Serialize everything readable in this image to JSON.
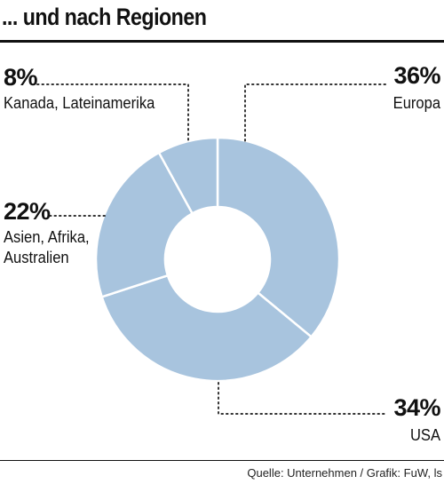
{
  "title": "... und nach Regionen",
  "source": "Quelle: Unternehmen / Grafik: FuW, ls",
  "colors": {
    "slice": "#a8c4de",
    "separator": "#ffffff",
    "leader": "#333333"
  },
  "chart_data": {
    "type": "pie",
    "variant": "donut",
    "slices": [
      {
        "label": "Europa",
        "value": 36,
        "value_label": "36%"
      },
      {
        "label": "USA",
        "value": 34,
        "value_label": "34%"
      },
      {
        "label": "Asien, Afrika, Australien",
        "label_lines": [
          "Asien, Afrika,",
          "Australien"
        ],
        "value": 22,
        "value_label": "22%"
      },
      {
        "label": "Kanada, Lateinamerika",
        "value": 8,
        "value_label": "8%"
      }
    ]
  }
}
